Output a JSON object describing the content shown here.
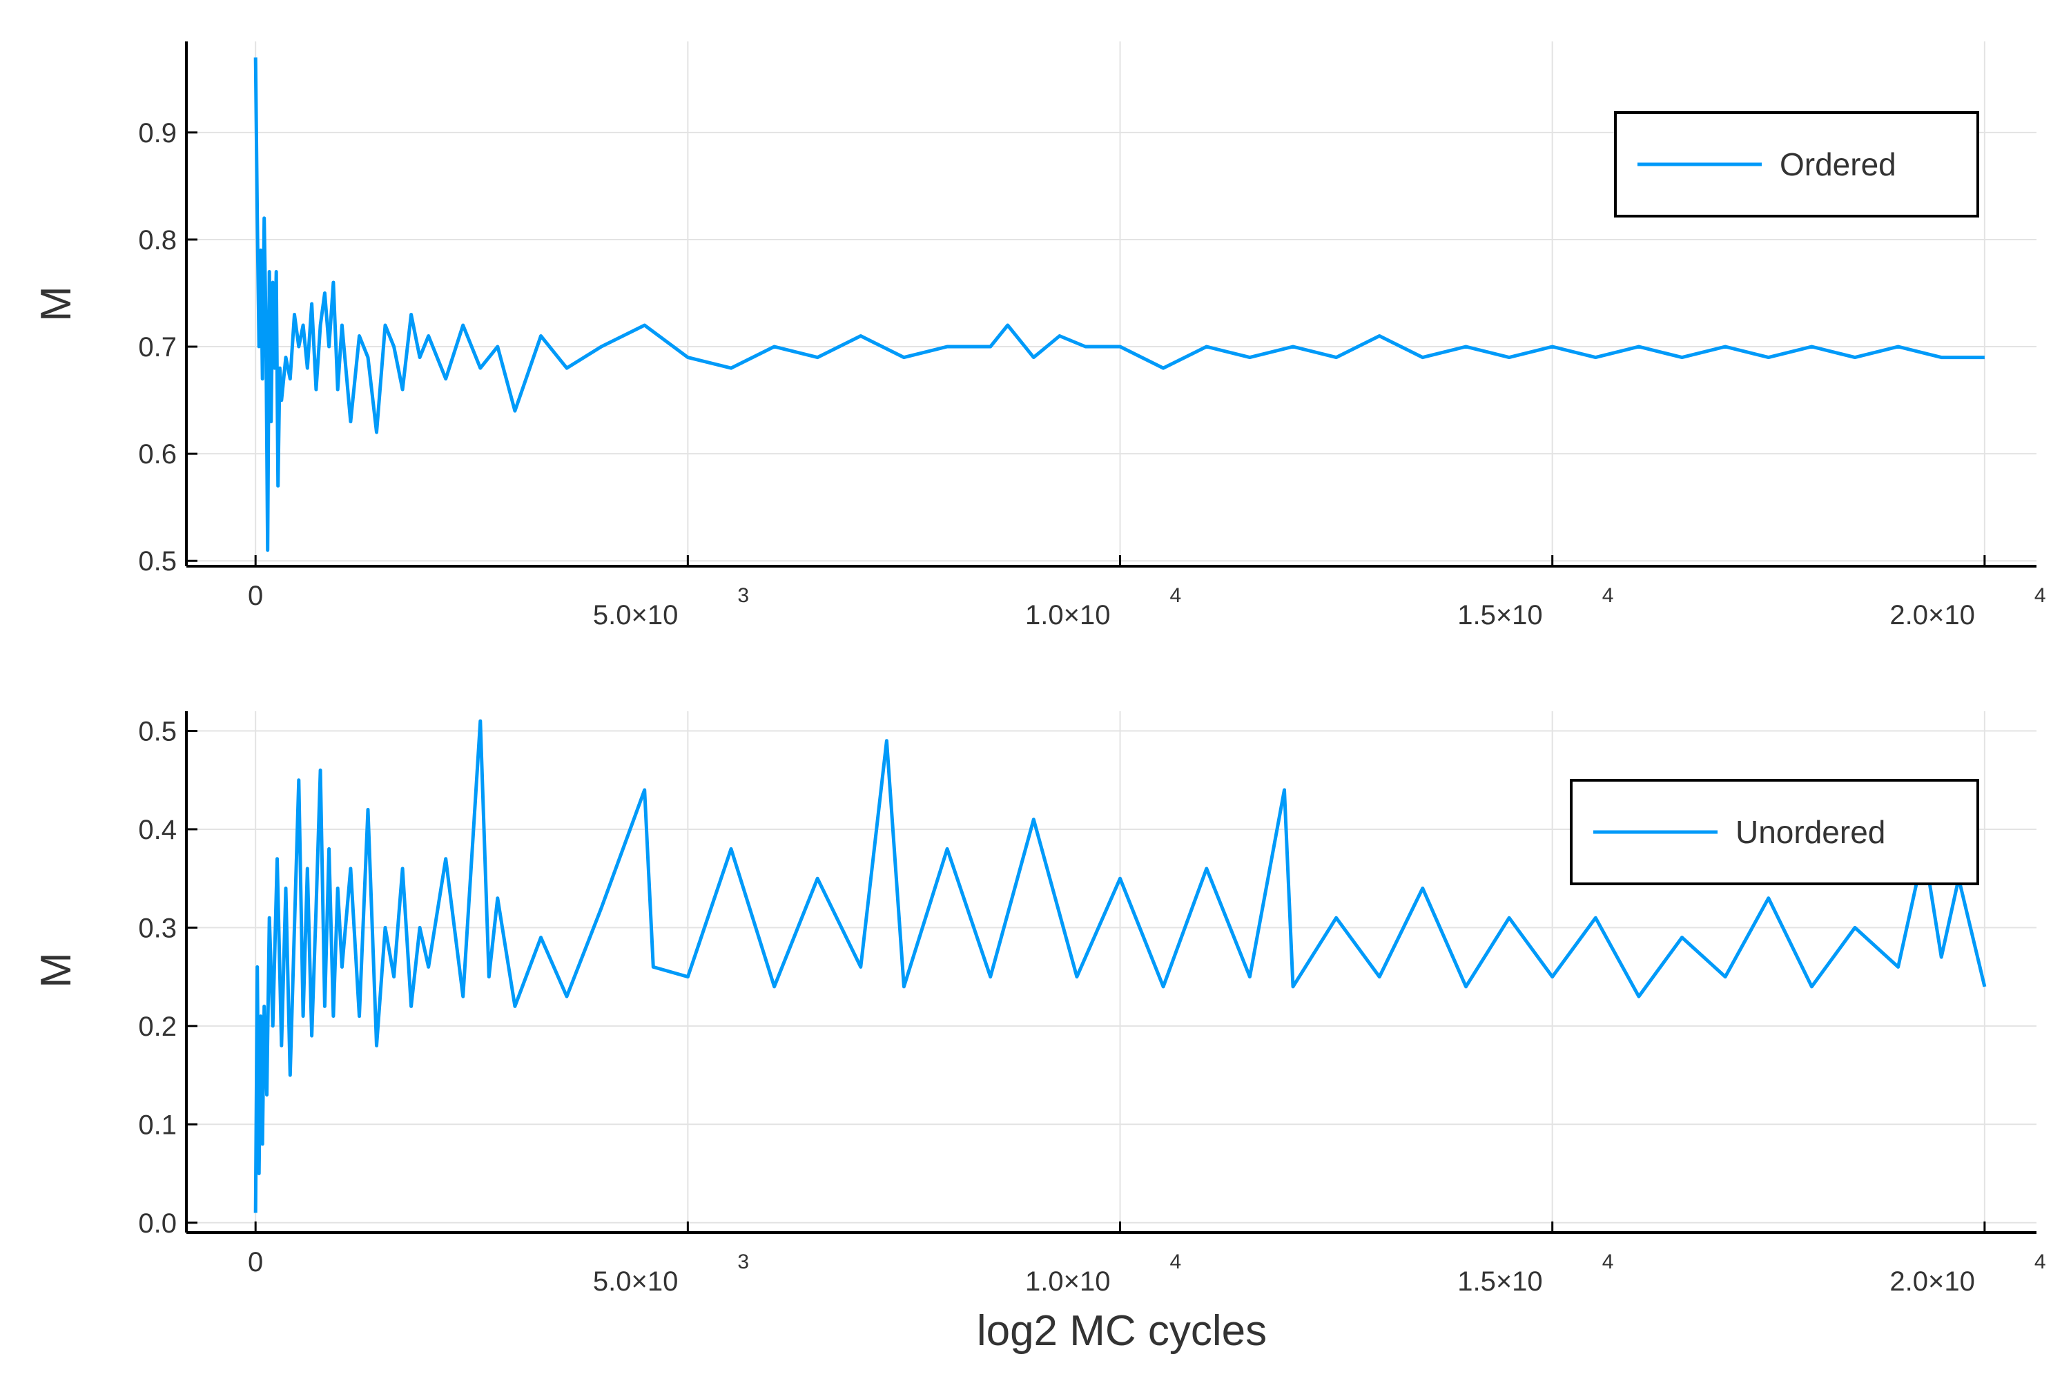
{
  "palette": {
    "series": "#009af9",
    "axis": "#000000",
    "grid": "#e3e3e3",
    "text": "#333333"
  },
  "chart_data": [
    {
      "type": "line",
      "title": "",
      "xlabel": "",
      "ylabel": "M",
      "xlim": [
        -800,
        20600
      ],
      "ylim": [
        0.495,
        0.985
      ],
      "grid": true,
      "legend_position": "top-right",
      "x_ticks": [
        {
          "value": 0,
          "mantissa": "0",
          "exponent": ""
        },
        {
          "value": 5000,
          "mantissa": "5.0×10",
          "exponent": "3"
        },
        {
          "value": 10000,
          "mantissa": "1.0×10",
          "exponent": "4"
        },
        {
          "value": 15000,
          "mantissa": "1.5×10",
          "exponent": "4"
        },
        {
          "value": 20000,
          "mantissa": "2.0×10",
          "exponent": "4"
        }
      ],
      "y_ticks": [
        {
          "value": 0.5,
          "label": "0.5"
        },
        {
          "value": 0.6,
          "label": "0.6"
        },
        {
          "value": 0.7,
          "label": "0.7"
        },
        {
          "value": 0.8,
          "label": "0.8"
        },
        {
          "value": 0.9,
          "label": "0.9"
        }
      ],
      "series": [
        {
          "name": "Ordered",
          "x": [
            0,
            20,
            40,
            60,
            80,
            100,
            120,
            140,
            160,
            180,
            200,
            220,
            240,
            260,
            280,
            300,
            350,
            400,
            450,
            500,
            550,
            600,
            650,
            700,
            750,
            800,
            850,
            900,
            950,
            1000,
            1100,
            1200,
            1300,
            1400,
            1500,
            1600,
            1700,
            1800,
            1900,
            2000,
            2200,
            2400,
            2600,
            2800,
            3000,
            3300,
            3600,
            4000,
            4500,
            5000,
            5500,
            6000,
            6500,
            7000,
            7500,
            8000,
            8500,
            8700,
            9000,
            9300,
            9600,
            10000,
            10500,
            11000,
            11500,
            12000,
            12500,
            13000,
            13500,
            14000,
            14500,
            15000,
            15500,
            16000,
            16500,
            17000,
            17500,
            18000,
            18500,
            19000,
            19500,
            20000
          ],
          "y": [
            0.97,
            0.82,
            0.7,
            0.79,
            0.67,
            0.82,
            0.72,
            0.51,
            0.77,
            0.63,
            0.76,
            0.68,
            0.77,
            0.57,
            0.68,
            0.65,
            0.69,
            0.67,
            0.73,
            0.7,
            0.72,
            0.68,
            0.74,
            0.66,
            0.72,
            0.75,
            0.7,
            0.76,
            0.66,
            0.72,
            0.63,
            0.71,
            0.69,
            0.62,
            0.72,
            0.7,
            0.66,
            0.73,
            0.69,
            0.71,
            0.67,
            0.72,
            0.68,
            0.7,
            0.64,
            0.71,
            0.68,
            0.7,
            0.72,
            0.69,
            0.68,
            0.7,
            0.69,
            0.71,
            0.69,
            0.7,
            0.7,
            0.72,
            0.69,
            0.71,
            0.7,
            0.7,
            0.68,
            0.7,
            0.69,
            0.7,
            0.69,
            0.71,
            0.69,
            0.7,
            0.69,
            0.7,
            0.69,
            0.7,
            0.69,
            0.7,
            0.69,
            0.7,
            0.69,
            0.7,
            0.69,
            0.69
          ]
        }
      ]
    },
    {
      "type": "line",
      "title": "",
      "xlabel": "log2 MC cycles",
      "ylabel": "M",
      "xlim": [
        -800,
        20600
      ],
      "ylim": [
        -0.01,
        0.52
      ],
      "grid": true,
      "legend_position": "top-right",
      "x_ticks": [
        {
          "value": 0,
          "mantissa": "0",
          "exponent": ""
        },
        {
          "value": 5000,
          "mantissa": "5.0×10",
          "exponent": "3"
        },
        {
          "value": 10000,
          "mantissa": "1.0×10",
          "exponent": "4"
        },
        {
          "value": 15000,
          "mantissa": "1.5×10",
          "exponent": "4"
        },
        {
          "value": 20000,
          "mantissa": "2.0×10",
          "exponent": "4"
        }
      ],
      "y_ticks": [
        {
          "value": 0.0,
          "label": "0.0"
        },
        {
          "value": 0.1,
          "label": "0.1"
        },
        {
          "value": 0.2,
          "label": "0.2"
        },
        {
          "value": 0.3,
          "label": "0.3"
        },
        {
          "value": 0.4,
          "label": "0.4"
        },
        {
          "value": 0.5,
          "label": "0.5"
        }
      ],
      "series": [
        {
          "name": "Unordered",
          "x": [
            0,
            20,
            40,
            60,
            80,
            100,
            130,
            160,
            200,
            250,
            300,
            350,
            400,
            450,
            500,
            550,
            600,
            650,
            700,
            750,
            800,
            850,
            900,
            950,
            1000,
            1100,
            1200,
            1300,
            1400,
            1500,
            1600,
            1700,
            1800,
            1900,
            2000,
            2200,
            2400,
            2600,
            2700,
            2800,
            3000,
            3300,
            3600,
            4000,
            4500,
            4600,
            5000,
            5500,
            6000,
            6500,
            7000,
            7300,
            7500,
            8000,
            8500,
            9000,
            9500,
            10000,
            10500,
            11000,
            11500,
            11900,
            12000,
            12500,
            13000,
            13500,
            14000,
            14500,
            15000,
            15500,
            16000,
            16500,
            17000,
            17500,
            18000,
            18500,
            19000,
            19300,
            19500,
            19700,
            20000
          ],
          "y": [
            0.01,
            0.26,
            0.05,
            0.21,
            0.08,
            0.22,
            0.13,
            0.31,
            0.2,
            0.37,
            0.18,
            0.34,
            0.15,
            0.3,
            0.45,
            0.21,
            0.36,
            0.19,
            0.32,
            0.46,
            0.22,
            0.38,
            0.21,
            0.34,
            0.26,
            0.36,
            0.21,
            0.42,
            0.18,
            0.3,
            0.25,
            0.36,
            0.22,
            0.3,
            0.26,
            0.37,
            0.23,
            0.51,
            0.25,
            0.33,
            0.22,
            0.29,
            0.23,
            0.32,
            0.44,
            0.26,
            0.25,
            0.38,
            0.24,
            0.35,
            0.26,
            0.49,
            0.24,
            0.38,
            0.25,
            0.41,
            0.25,
            0.35,
            0.24,
            0.36,
            0.25,
            0.44,
            0.24,
            0.31,
            0.25,
            0.34,
            0.24,
            0.31,
            0.25,
            0.31,
            0.23,
            0.29,
            0.25,
            0.33,
            0.24,
            0.3,
            0.26,
            0.38,
            0.27,
            0.35,
            0.24
          ]
        }
      ]
    }
  ]
}
